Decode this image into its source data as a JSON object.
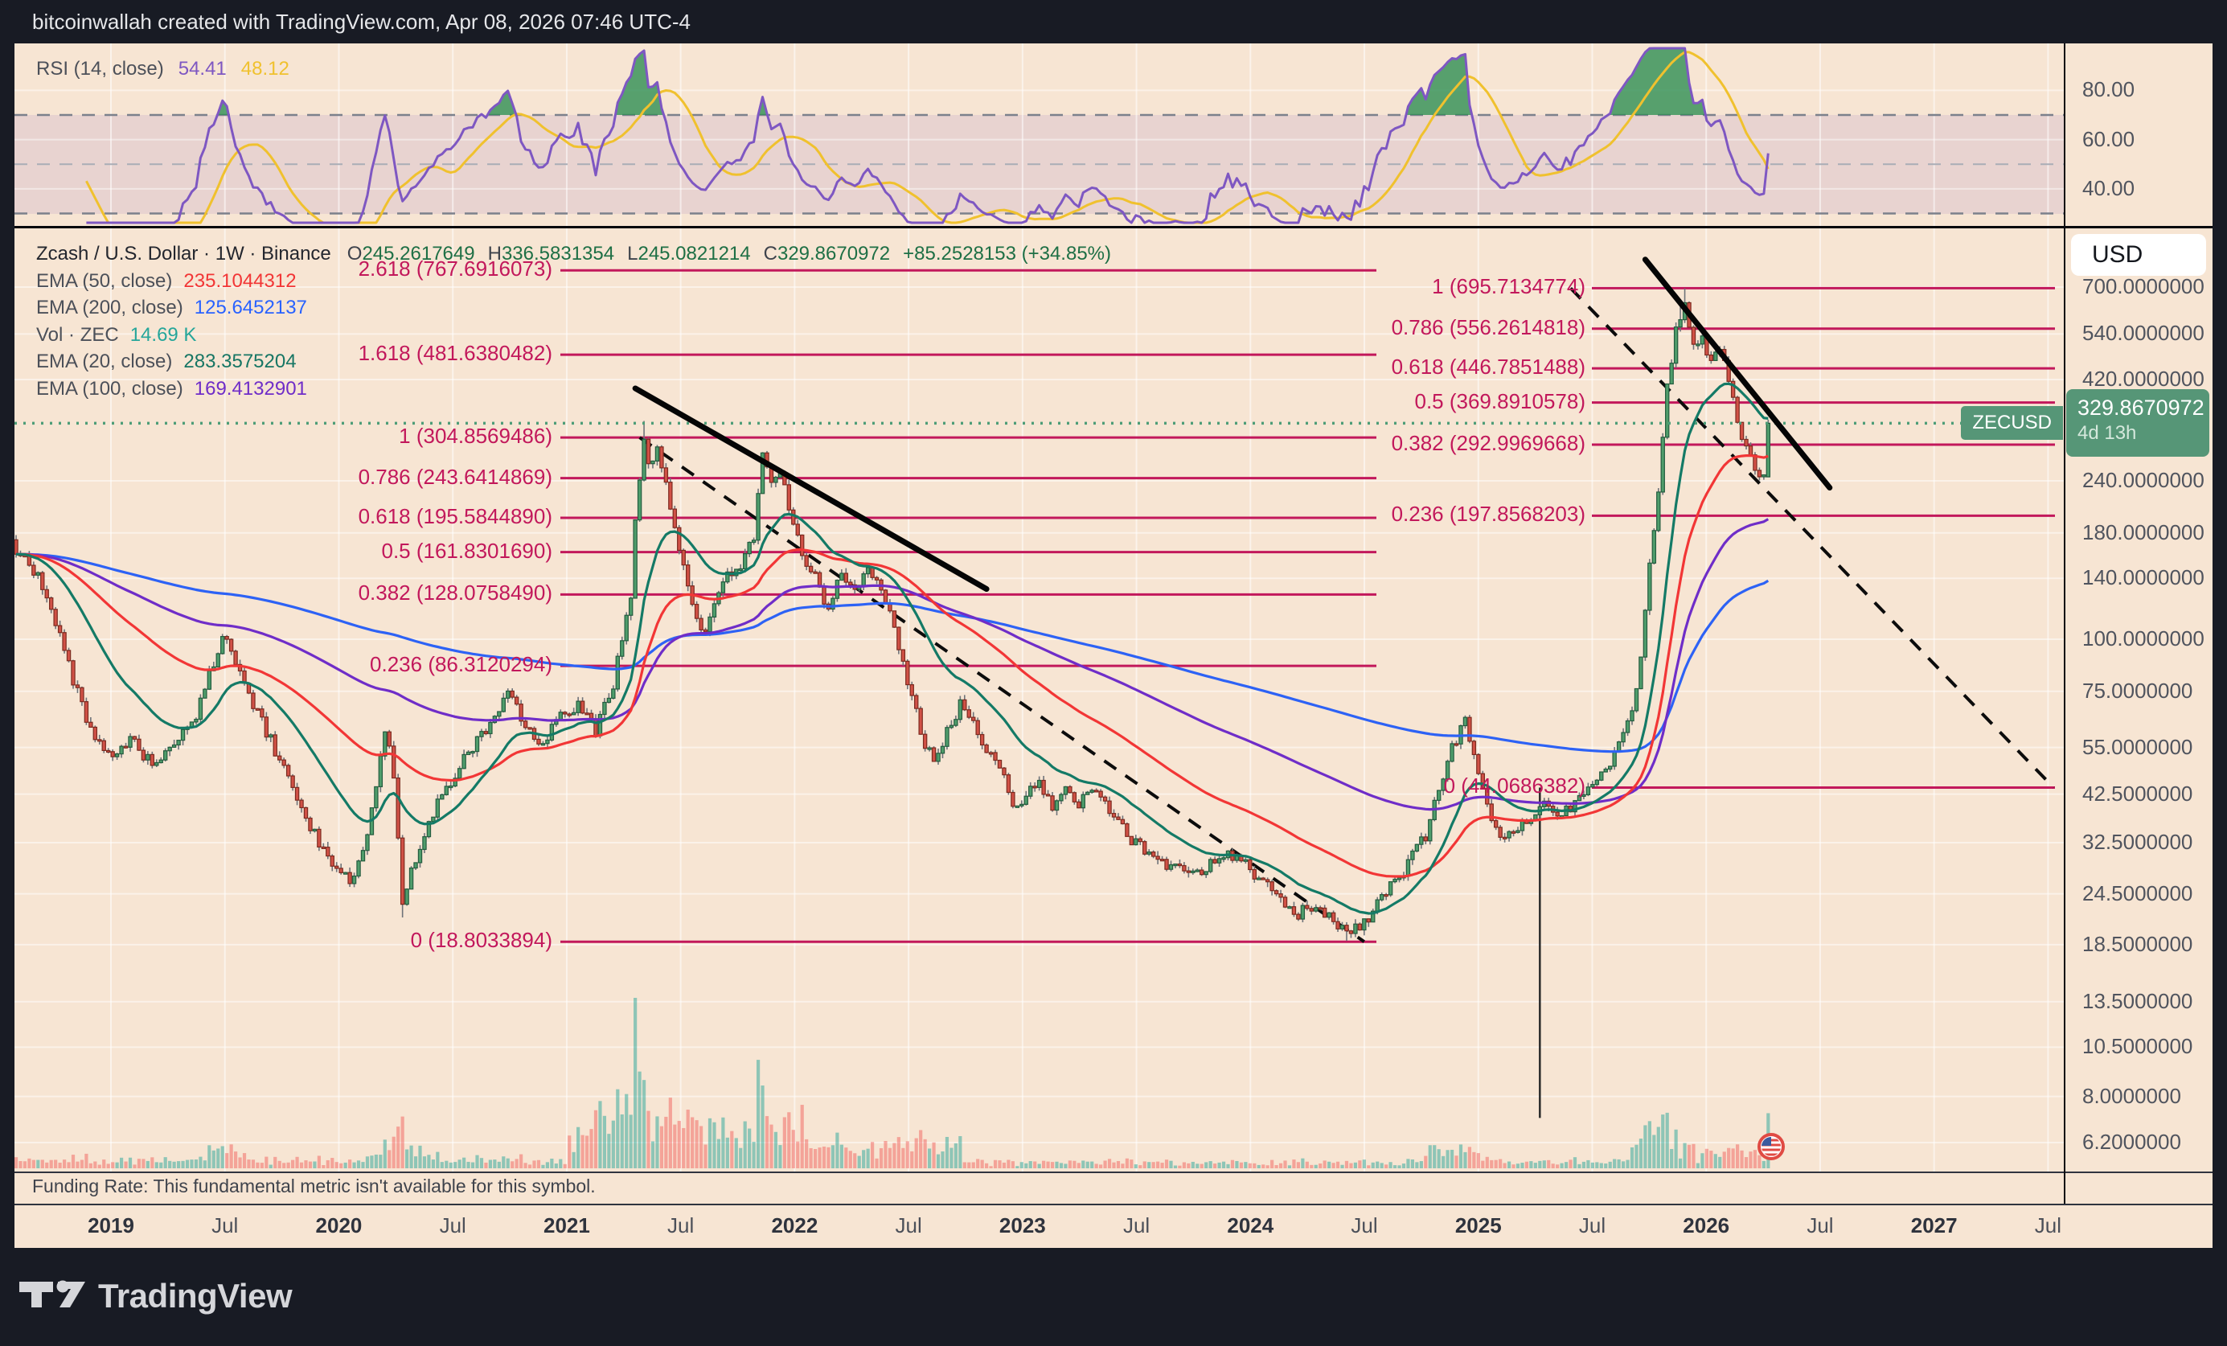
{
  "header": {
    "title": "bitcoinwallah created with TradingView.com, Apr 08, 2026 07:46 UTC-4"
  },
  "rsi": {
    "label": "RSI (14, close)",
    "value_main": "54.41",
    "value_signal": "48.12",
    "ticks": [
      {
        "v": 80,
        "label": "80.00"
      },
      {
        "v": 60,
        "label": "60.00"
      },
      {
        "v": 40,
        "label": "40.00"
      }
    ]
  },
  "main": {
    "legend": {
      "symbol": "Zcash / U.S. Dollar · 1W · Binance",
      "parts": [
        {
          "k": "O",
          "v": "245.2617649"
        },
        {
          "k": "H",
          "v": "336.5831354"
        },
        {
          "k": "L",
          "v": "245.0821214"
        },
        {
          "k": "C",
          "v": "329.8670972"
        }
      ],
      "change": "+85.2528153 (+34.85%)"
    },
    "indicators": [
      {
        "label": "EMA (50, close)",
        "value": "235.1044312",
        "color": "#f23636"
      },
      {
        "label": "EMA (200, close)",
        "value": "125.6452137",
        "color": "#2962ff"
      },
      {
        "label": "Vol · ZEC",
        "value": "14.69 K",
        "color": "#26a69a"
      },
      {
        "label": "EMA (20, close)",
        "value": "283.3575204",
        "color": "#177664"
      },
      {
        "label": "EMA (100, close)",
        "value": "169.4132901",
        "color": "#6f2dc8"
      }
    ],
    "fib_left": [
      {
        "f": 2.618,
        "p": 767.6916073,
        "label": "2.618 (767.6916073)"
      },
      {
        "f": 1.618,
        "p": 481.6380482,
        "label": "1.618 (481.6380482)"
      },
      {
        "f": 1,
        "p": 304.8569486,
        "label": "1 (304.8569486)"
      },
      {
        "f": 0.786,
        "p": 243.6414869,
        "label": "0.786 (243.6414869)"
      },
      {
        "f": 0.618,
        "p": 195.584489,
        "label": "0.618 (195.5844890)"
      },
      {
        "f": 0.5,
        "p": 161.830169,
        "label": "0.5 (161.8301690)"
      },
      {
        "f": 0.382,
        "p": 128.075849,
        "label": "0.382 (128.0758490)"
      },
      {
        "f": 0.236,
        "p": 86.3120294,
        "label": "0.236 (86.3120294)"
      },
      {
        "f": 0,
        "p": 18.8033894,
        "label": "0 (18.8033894)"
      }
    ],
    "fib_right": [
      {
        "f": 1,
        "p": 695.7134774,
        "label": "1 (695.7134774)"
      },
      {
        "f": 0.786,
        "p": 556.2614818,
        "label": "0.786 (556.2614818)"
      },
      {
        "f": 0.618,
        "p": 446.7851488,
        "label": "0.618 (446.7851488)"
      },
      {
        "f": 0.5,
        "p": 369.8910578,
        "label": "0.5 (369.8910578)"
      },
      {
        "f": 0.382,
        "p": 292.9969668,
        "label": "0.382 (292.9969668)"
      },
      {
        "f": 0.236,
        "p": 197.8568203,
        "label": "0.236 (197.8568203)"
      },
      {
        "f": 0,
        "p": 44.0686382,
        "label": "0 (44.0686382)"
      }
    ]
  },
  "price_scale": {
    "currency": "USD",
    "price_label": {
      "symbol": "ZECUSD",
      "price": "329.8670972",
      "countdown": "4d 13h"
    }
  },
  "funding_note": "Funding Rate: This fundamental metric isn't available for this symbol.",
  "time_axis": [
    "2019",
    "Jul",
    "2020",
    "Jul",
    "2021",
    "Jul",
    "2022",
    "Jul",
    "2023",
    "Jul",
    "2024",
    "Jul",
    "2025",
    "Jul",
    "2026",
    "Jul",
    "2027",
    "Jul"
  ],
  "footer": {
    "brand": "TradingView"
  },
  "chart_data": {
    "type": "candlestick",
    "symbol": "ZECUSD",
    "interval": "1W",
    "exchange": "Binance",
    "last_candle": {
      "open": 245.2617649,
      "high": 336.5831354,
      "low": 245.0821214,
      "close": 329.8670972,
      "change": 85.2528153,
      "change_pct": 34.85
    },
    "indicators": {
      "rsi": {
        "length": 14,
        "value": 54.41,
        "signal": 48.12
      },
      "ema": {
        "20": 283.3575204,
        "50": 235.1044312,
        "100": 169.4132901,
        "200": 125.6452137
      },
      "volume": "14.69 K"
    },
    "price_scale": [
      {
        "v": 700,
        "label": "700.0000000"
      },
      {
        "v": 540,
        "label": "540.0000000"
      },
      {
        "v": 420,
        "label": "420.0000000"
      },
      {
        "v": 240,
        "label": "240.0000000"
      },
      {
        "v": 180,
        "label": "180.0000000"
      },
      {
        "v": 140,
        "label": "140.0000000"
      },
      {
        "v": 100,
        "label": "100.0000000"
      },
      {
        "v": 75,
        "label": "75.0000000"
      },
      {
        "v": 55,
        "label": "55.0000000"
      },
      {
        "v": 42.5,
        "label": "42.5000000"
      },
      {
        "v": 32.5,
        "label": "32.5000000"
      },
      {
        "v": 24.5,
        "label": "24.5000000"
      },
      {
        "v": 18.5,
        "label": "18.5000000"
      },
      {
        "v": 13.5,
        "label": "13.5000000"
      },
      {
        "v": 10.5,
        "label": "10.5000000"
      },
      {
        "v": 8,
        "label": "8.0000000"
      },
      {
        "v": 6.2,
        "label": "6.2000000"
      }
    ],
    "rsi_dashed_levels": [
      70,
      50,
      30
    ],
    "time_axis": [
      "2019",
      "Jul",
      "2020",
      "Jul",
      "2021",
      "Jul",
      "2022",
      "Jul",
      "2023",
      "Jul",
      "2024",
      "Jul",
      "2025",
      "Jul",
      "2026",
      "Jul",
      "2027",
      "Jul"
    ],
    "price_anchors": [
      [
        0,
        165
      ],
      [
        5,
        142
      ],
      [
        9,
        110
      ],
      [
        13,
        80
      ],
      [
        17,
        60
      ],
      [
        21,
        52
      ],
      [
        26,
        58
      ],
      [
        31,
        50
      ],
      [
        36,
        57
      ],
      [
        41,
        66
      ],
      [
        45,
        88
      ],
      [
        47,
        103
      ],
      [
        50,
        90
      ],
      [
        54,
        70
      ],
      [
        58,
        57
      ],
      [
        63,
        44
      ],
      [
        68,
        34
      ],
      [
        72,
        29
      ],
      [
        76,
        26
      ],
      [
        80,
        33
      ],
      [
        84,
        60
      ],
      [
        86,
        48
      ],
      [
        88,
        23
      ],
      [
        90,
        28
      ],
      [
        94,
        37
      ],
      [
        99,
        46
      ],
      [
        104,
        55
      ],
      [
        108,
        62
      ],
      [
        112,
        76
      ],
      [
        116,
        62
      ],
      [
        120,
        56
      ],
      [
        124,
        66
      ],
      [
        128,
        70
      ],
      [
        132,
        60
      ],
      [
        136,
        78
      ],
      [
        138,
        100
      ],
      [
        140,
        130
      ],
      [
        141,
        200
      ],
      [
        143,
        300
      ],
      [
        144,
        262
      ],
      [
        146,
        282
      ],
      [
        148,
        240
      ],
      [
        150,
        185
      ],
      [
        153,
        130
      ],
      [
        156,
        103
      ],
      [
        159,
        118
      ],
      [
        162,
        142
      ],
      [
        165,
        152
      ],
      [
        168,
        172
      ],
      [
        170,
        272
      ],
      [
        172,
        240
      ],
      [
        174,
        252
      ],
      [
        176,
        205
      ],
      [
        179,
        160
      ],
      [
        182,
        140
      ],
      [
        185,
        118
      ],
      [
        188,
        146
      ],
      [
        191,
        128
      ],
      [
        194,
        150
      ],
      [
        197,
        132
      ],
      [
        200,
        108
      ],
      [
        203,
        80
      ],
      [
        206,
        60
      ],
      [
        209,
        50
      ],
      [
        212,
        60
      ],
      [
        215,
        70
      ],
      [
        218,
        62
      ],
      [
        221,
        55
      ],
      [
        224,
        50
      ],
      [
        227,
        40
      ],
      [
        230,
        42
      ],
      [
        233,
        46
      ],
      [
        236,
        40
      ],
      [
        239,
        44
      ],
      [
        242,
        40
      ],
      [
        245,
        43
      ],
      [
        248,
        40
      ],
      [
        251,
        36
      ],
      [
        254,
        33
      ],
      [
        257,
        31
      ],
      [
        260,
        30
      ],
      [
        264,
        28
      ],
      [
        268,
        27
      ],
      [
        272,
        29
      ],
      [
        276,
        31
      ],
      [
        280,
        29
      ],
      [
        284,
        26
      ],
      [
        288,
        24
      ],
      [
        292,
        22
      ],
      [
        296,
        23
      ],
      [
        300,
        21
      ],
      [
        303,
        19.6
      ],
      [
        306,
        20.5
      ],
      [
        309,
        22
      ],
      [
        312,
        25
      ],
      [
        315,
        27
      ],
      [
        318,
        30
      ],
      [
        321,
        34
      ],
      [
        324,
        44
      ],
      [
        327,
        55
      ],
      [
        330,
        63
      ],
      [
        332,
        52
      ],
      [
        334,
        44
      ],
      [
        336,
        38
      ],
      [
        339,
        33
      ],
      [
        342,
        35
      ],
      [
        345,
        38
      ],
      [
        348,
        41
      ],
      [
        351,
        38
      ],
      [
        354,
        39
      ],
      [
        357,
        42
      ],
      [
        360,
        45
      ],
      [
        363,
        50
      ],
      [
        366,
        58
      ],
      [
        368,
        66
      ],
      [
        370,
        92
      ],
      [
        372,
        150
      ],
      [
        374,
        230
      ],
      [
        376,
        400
      ],
      [
        378,
        550
      ],
      [
        380,
        640
      ],
      [
        382,
        500
      ],
      [
        384,
        525
      ],
      [
        386,
        455
      ],
      [
        388,
        495
      ],
      [
        390,
        420
      ],
      [
        392,
        335
      ],
      [
        394,
        285
      ],
      [
        396,
        252
      ],
      [
        398,
        248
      ],
      [
        399,
        329.8670972
      ]
    ],
    "trendlines": [
      {
        "type": "solid",
        "from": [
          141,
          400
        ],
        "to": [
          221,
          132
        ]
      },
      {
        "type": "solid",
        "from": [
          371,
          815
        ],
        "to": [
          413,
          231
        ]
      },
      {
        "type": "dashed",
        "from": [
          142,
          304.8569486
        ],
        "to": [
          307,
          18.8033894
        ]
      },
      {
        "type": "dashed",
        "from": [
          354,
          695.7134774
        ],
        "to": [
          464,
          44.0686382
        ]
      },
      {
        "type": "vertical",
        "t": 347,
        "from_price": 44.0686382,
        "to_price": 7.1
      }
    ],
    "colors": {
      "background": "#f7e5d3",
      "fib": "#c2185b",
      "candle_up": "#4f9d6b",
      "candle_down": "#d15146",
      "ema20": "#147a66",
      "ema50": "#f23636",
      "ema100": "#6f2dc8",
      "ema200": "#2d62f5",
      "volume_up": "#26a69a",
      "volume_down": "#ef5350",
      "rsi": "#7e57c2",
      "rsi_signal": "#f0c12e",
      "badge": "#569677",
      "current_price_line": "#4d9d77"
    }
  }
}
